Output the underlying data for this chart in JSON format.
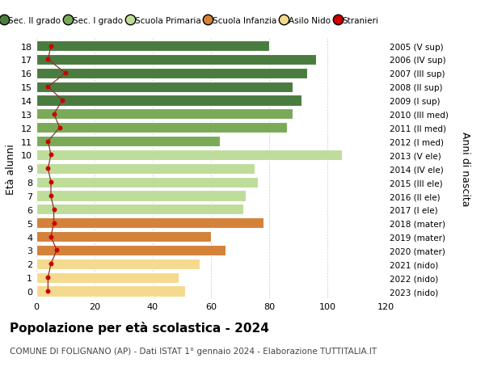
{
  "ages": [
    18,
    17,
    16,
    15,
    14,
    13,
    12,
    11,
    10,
    9,
    8,
    7,
    6,
    5,
    4,
    3,
    2,
    1,
    0
  ],
  "bar_values": [
    80,
    96,
    93,
    88,
    91,
    88,
    86,
    63,
    105,
    75,
    76,
    72,
    71,
    78,
    60,
    65,
    56,
    49,
    51
  ],
  "stranieri": [
    5,
    4,
    10,
    4,
    9,
    6,
    8,
    4,
    5,
    4,
    5,
    5,
    6,
    6,
    5,
    7,
    5,
    4,
    4
  ],
  "right_labels": [
    "2005 (V sup)",
    "2006 (IV sup)",
    "2007 (III sup)",
    "2008 (II sup)",
    "2009 (I sup)",
    "2010 (III med)",
    "2011 (II med)",
    "2012 (I med)",
    "2013 (V ele)",
    "2014 (IV ele)",
    "2015 (III ele)",
    "2016 (II ele)",
    "2017 (I ele)",
    "2018 (mater)",
    "2019 (mater)",
    "2020 (mater)",
    "2021 (nido)",
    "2022 (nido)",
    "2023 (nido)"
  ],
  "bar_colors": [
    "#4a7c3f",
    "#4a7c3f",
    "#4a7c3f",
    "#4a7c3f",
    "#4a7c3f",
    "#7aaa58",
    "#7aaa58",
    "#7aaa58",
    "#bedd9a",
    "#bedd9a",
    "#bedd9a",
    "#bedd9a",
    "#bedd9a",
    "#d4813a",
    "#d4813a",
    "#d4813a",
    "#f5d98e",
    "#f5d98e",
    "#f5d98e"
  ],
  "legend_labels": [
    "Sec. II grado",
    "Sec. I grado",
    "Scuola Primaria",
    "Scuola Infanzia",
    "Asilo Nido",
    "Stranieri"
  ],
  "legend_colors": [
    "#4a7c3f",
    "#7aaa58",
    "#bedd9a",
    "#d4813a",
    "#f5d98e",
    "#cc0000"
  ],
  "title": "Popolazione per età scolastica - 2024",
  "subtitle": "COMUNE DI FOLIGNANO (AP) - Dati ISTAT 1° gennaio 2024 - Elaborazione TUTTITALIA.IT",
  "ylabel_left": "Età alunni",
  "ylabel_right": "Anni di nascita",
  "xlim": [
    0,
    120
  ],
  "xticks": [
    0,
    20,
    40,
    60,
    80,
    100,
    120
  ],
  "ylim": [
    -0.55,
    18.55
  ],
  "background_color": "#ffffff",
  "bar_height": 0.78,
  "line_color": "#8b3030",
  "stranieri_color": "#cc0000",
  "grid_color": "#cccccc"
}
